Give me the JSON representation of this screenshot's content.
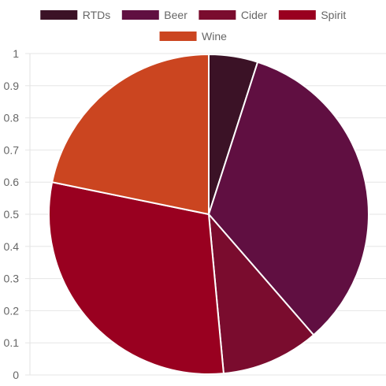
{
  "chart_data": {
    "type": "pie",
    "categories": [
      "RTDs",
      "Beer",
      "Cider",
      "Spirit",
      "Wine"
    ],
    "values": [
      0.05,
      0.34,
      0.1,
      0.3,
      0.22
    ],
    "colors": [
      "#3b1226",
      "#600f41",
      "#7a0c2e",
      "#990020",
      "#cb4520"
    ],
    "legend": {
      "position": "top",
      "labels": [
        "RTDs",
        "Beer",
        "Cider",
        "Spirit",
        "Wine"
      ]
    },
    "y_axis": {
      "ticks": [
        "1",
        "0.9",
        "0.8",
        "0.7",
        "0.6",
        "0.5",
        "0.4",
        "0.3",
        "0.2",
        "0.1",
        "0"
      ],
      "ylim": [
        0,
        1
      ]
    },
    "grid": true
  }
}
